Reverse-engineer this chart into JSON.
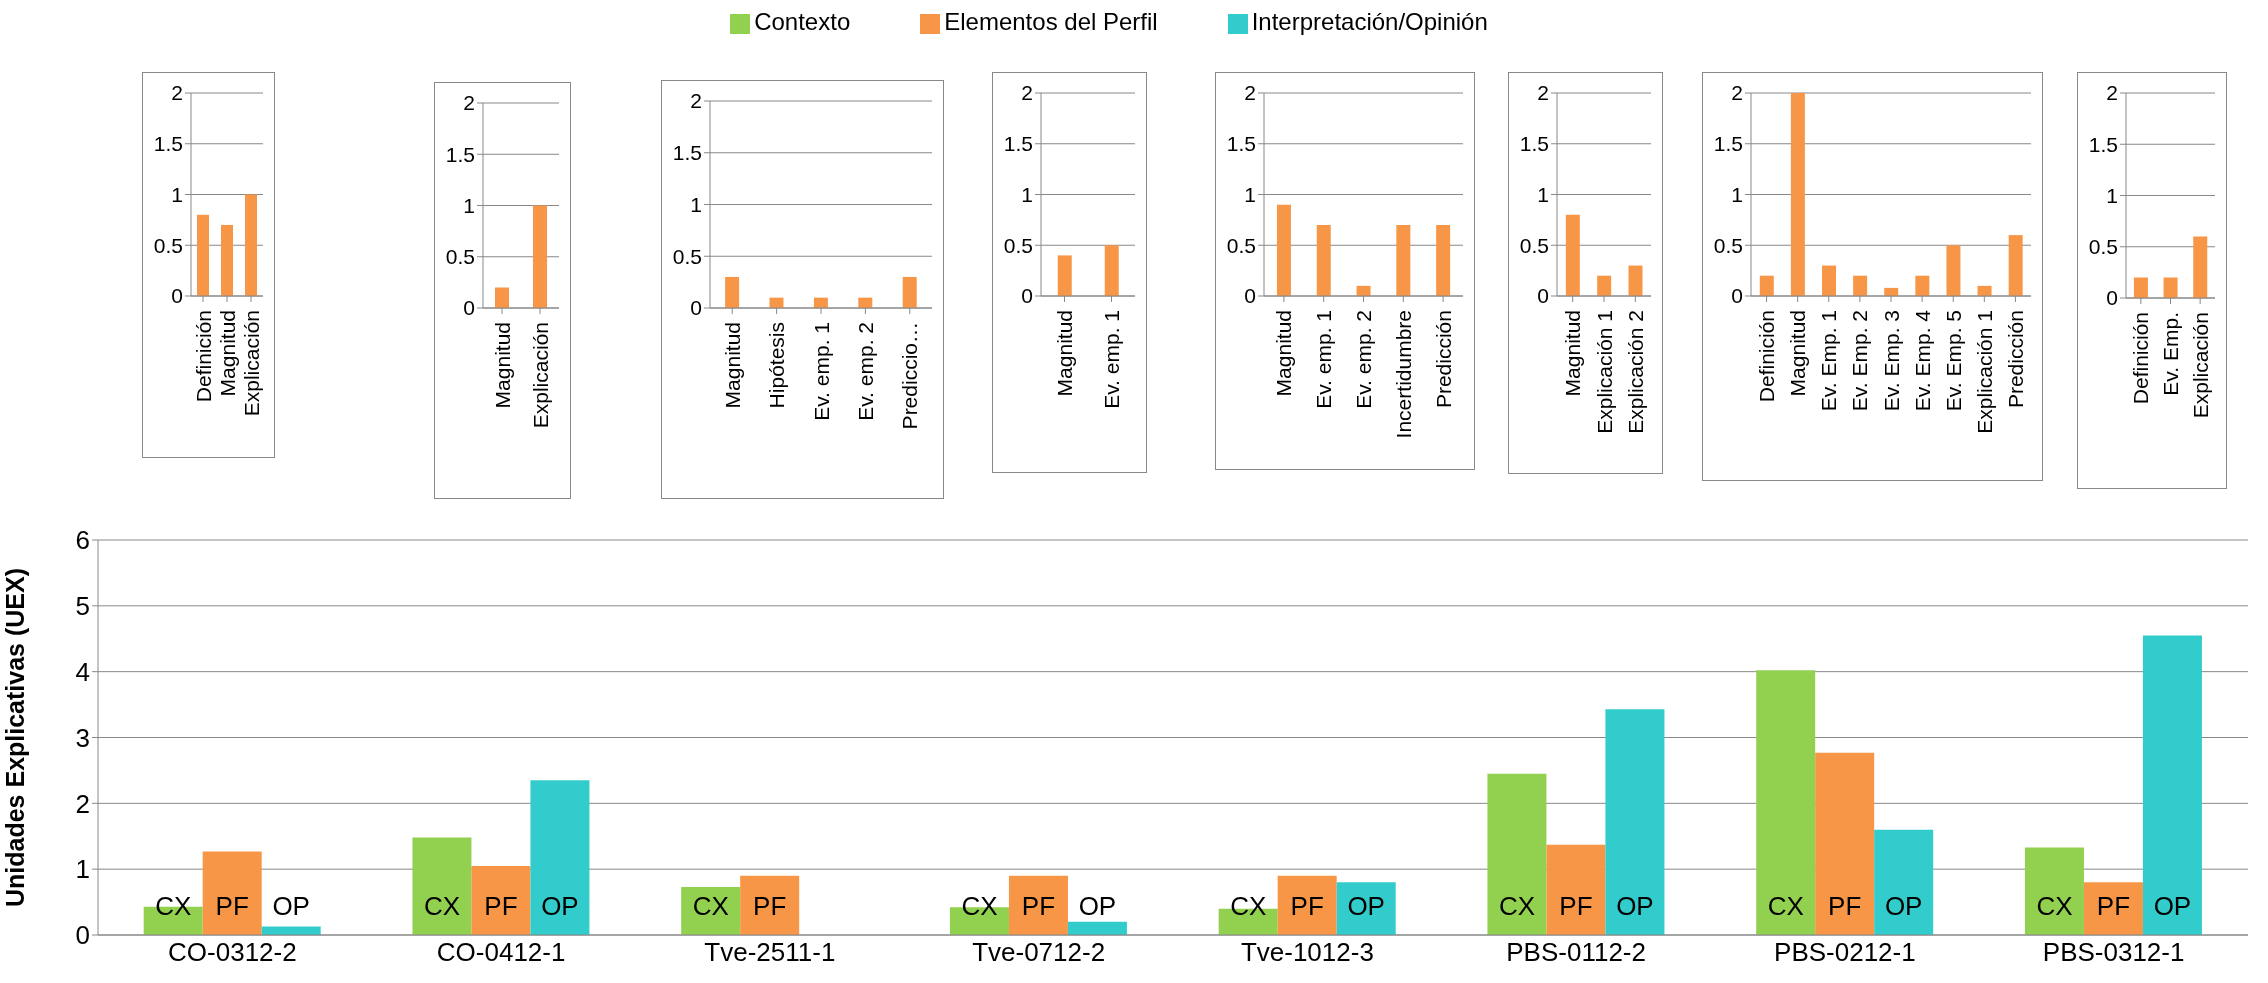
{
  "chart_data": [
    {
      "type": "bar",
      "categories": [
        "Definición",
        "Magnitud",
        "Explicación"
      ],
      "values": [
        0.8,
        0.7,
        1.0
      ],
      "color": "#f79646",
      "ylim": [
        0,
        2
      ],
      "yticks": [
        0,
        0.5,
        1,
        1.5,
        2
      ],
      "grid": "y"
    },
    {
      "type": "bar",
      "categories": [
        "Magnitud",
        "Explicación"
      ],
      "values": [
        0.2,
        1.0
      ],
      "color": "#f79646",
      "ylim": [
        0,
        2
      ],
      "yticks": [
        0,
        0.5,
        1,
        1.5,
        2
      ],
      "grid": "y"
    },
    {
      "type": "bar",
      "categories": [
        "Magnitud",
        "Hipótesis",
        "Ev. emp. 1",
        "Ev. emp. 2",
        "Prediccio…"
      ],
      "values": [
        0.3,
        0.1,
        0.1,
        0.1,
        0.3
      ],
      "color": "#f79646",
      "ylim": [
        0,
        2
      ],
      "yticks": [
        0,
        0.5,
        1,
        1.5,
        2
      ],
      "grid": "y"
    },
    {
      "type": "bar",
      "categories": [
        "Magnitud",
        "Ev. emp. 1"
      ],
      "values": [
        0.4,
        0.5
      ],
      "color": "#f79646",
      "ylim": [
        0,
        2
      ],
      "yticks": [
        0,
        0.5,
        1,
        1.5,
        2
      ],
      "grid": "y"
    },
    {
      "type": "bar",
      "categories": [
        "Magnitud",
        "Ev. emp. 1",
        "Ev. emp. 2",
        "Incertidumbre",
        "Predicción"
      ],
      "values": [
        0.9,
        0.7,
        0.1,
        0.7,
        0.7
      ],
      "color": "#f79646",
      "ylim": [
        0,
        2
      ],
      "yticks": [
        0,
        0.5,
        1,
        1.5,
        2
      ],
      "grid": "y"
    },
    {
      "type": "bar",
      "categories": [
        "Magnitud",
        "Explicación 1",
        "Explicación 2"
      ],
      "values": [
        0.8,
        0.2,
        0.3
      ],
      "color": "#f79646",
      "ylim": [
        0,
        2
      ],
      "yticks": [
        0,
        0.5,
        1,
        1.5,
        2
      ],
      "grid": "y"
    },
    {
      "type": "bar",
      "categories": [
        "Definición",
        "Magnitud",
        "Ev. Emp. 1",
        "Ev. Emp. 2",
        "Ev. Emp. 3",
        "Ev. Emp. 4",
        "Ev. Emp. 5",
        "Explicación 1",
        "Predicción"
      ],
      "values": [
        0.2,
        2.0,
        0.3,
        0.2,
        0.08,
        0.2,
        0.5,
        0.1,
        0.6
      ],
      "color": "#f79646",
      "ylim": [
        0,
        2
      ],
      "yticks": [
        0,
        0.5,
        1,
        1.5,
        2
      ],
      "grid": "y"
    },
    {
      "type": "bar",
      "categories": [
        "Definición",
        "Ev. Emp.",
        "Explicación"
      ],
      "values": [
        0.2,
        0.2,
        0.6
      ],
      "color": "#f79646",
      "ylim": [
        0,
        2
      ],
      "yticks": [
        0,
        0.5,
        1,
        1.5,
        2
      ],
      "grid": "y"
    },
    {
      "type": "bar",
      "ylabel": "Unidades Explicativas (UEX)",
      "categories": [
        "CO-0312-2",
        "CO-0412-1",
        "Tve-2511-1",
        "Tve-0712-2",
        "Tve-1012-3",
        "PBS-0112-2",
        "PBS-0212-1",
        "PBS-0312-1"
      ],
      "series": [
        {
          "name": "Contexto",
          "color": "#92d050",
          "values": [
            0.43,
            1.48,
            0.73,
            0.42,
            0.4,
            2.45,
            4.02,
            1.33
          ]
        },
        {
          "name": "Elementos del Perfil",
          "color": "#f79646",
          "values": [
            1.27,
            1.05,
            0.9,
            0.9,
            0.9,
            1.37,
            2.77,
            0.8
          ]
        },
        {
          "name": "Interpretación/Opinión",
          "color": "#33cccc",
          "values": [
            0.13,
            2.35,
            null,
            0.2,
            0.8,
            3.43,
            1.6,
            4.55
          ]
        }
      ],
      "ylim": [
        0,
        6
      ],
      "yticks": [
        0,
        1,
        2,
        3,
        4,
        5,
        6
      ],
      "grid": "y",
      "legend": "top",
      "annotations": [
        "CX",
        "PF",
        "OP",
        "CX",
        "PF",
        "OP",
        "CX",
        "PF",
        "CX",
        "PF",
        "OP",
        "CX",
        "PF",
        "OP",
        "CX",
        "PF",
        "OP",
        "CX",
        "PF",
        "OP",
        "CX",
        "PF",
        "OP"
      ]
    }
  ]
}
